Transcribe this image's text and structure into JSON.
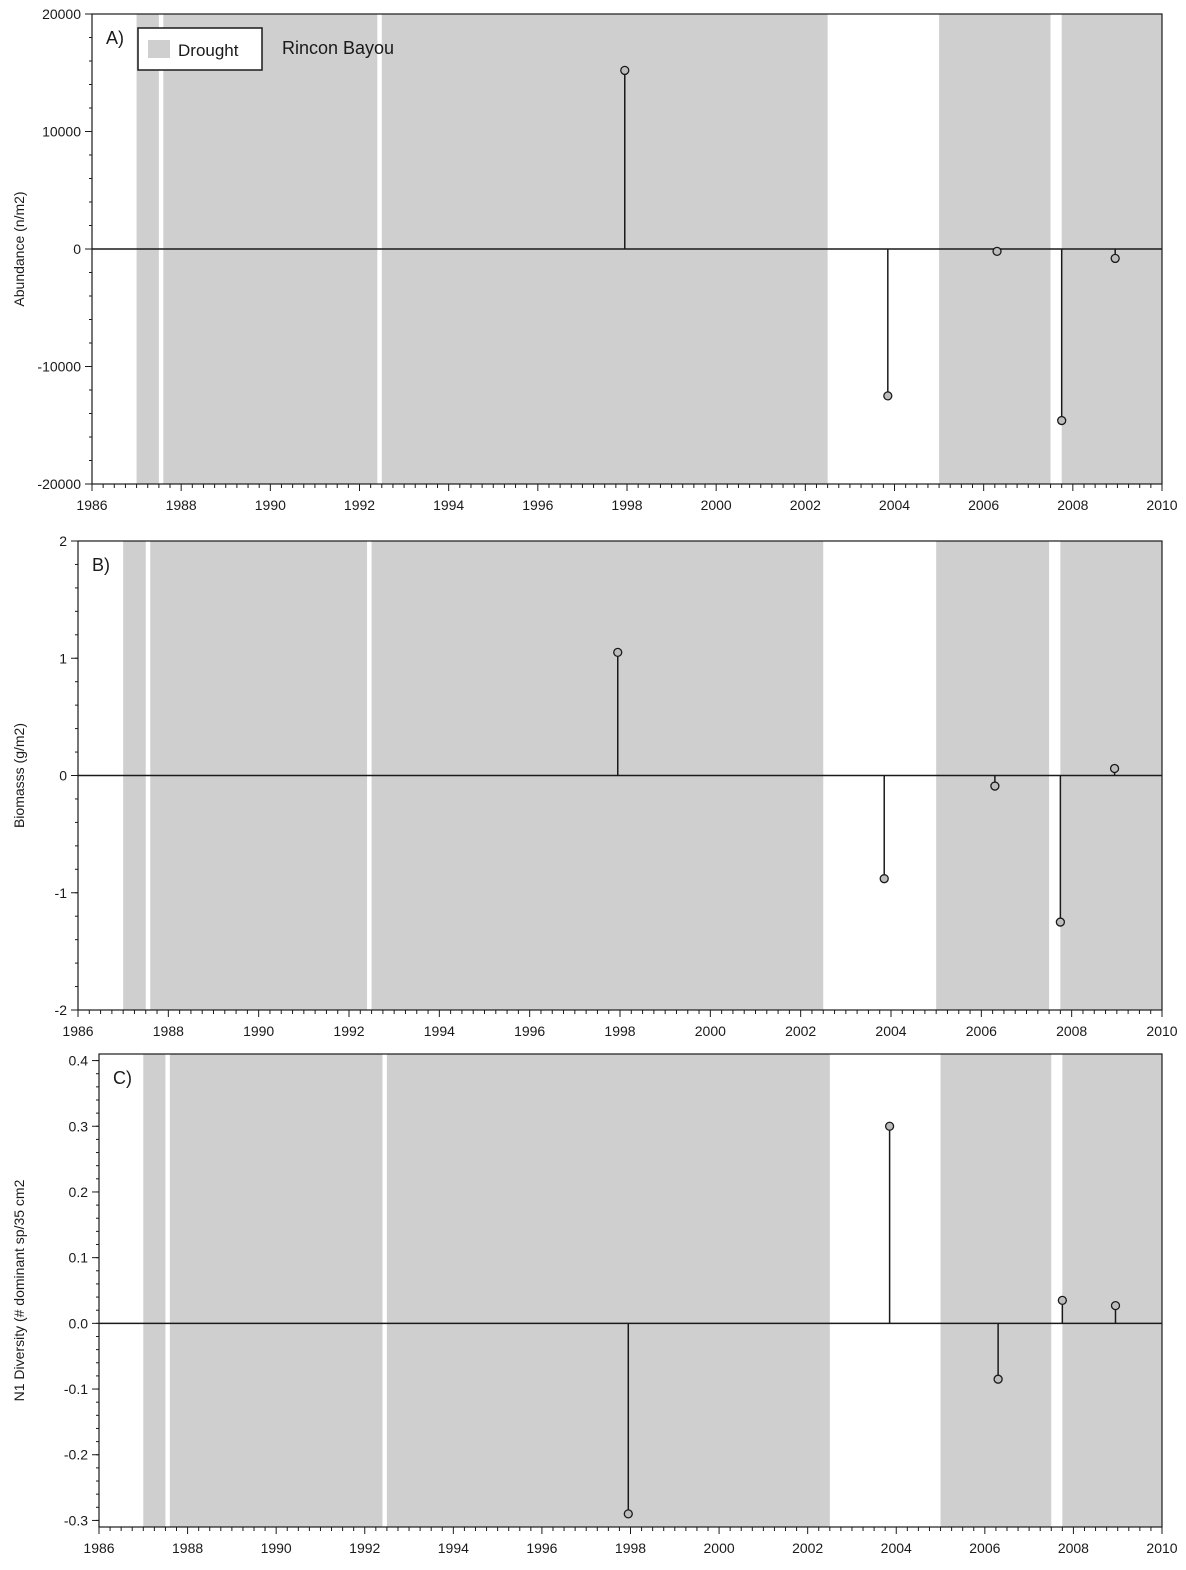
{
  "colors": {
    "drought_fill": "#cfcfcf",
    "background": "#ffffff",
    "line": "#1a1a1a",
    "marker_fill": "#bdbdbd"
  },
  "chart_data": [
    {
      "type": "stem",
      "panel_label": "A)",
      "legend": {
        "swatch_label": "Drought",
        "placement": "top-left"
      },
      "series_label": "Rincon Bayou",
      "ylabel": "Abundance (n/m2)",
      "xlabel": "",
      "xlim": [
        1986,
        2010
      ],
      "ylim": [
        -20000,
        20000
      ],
      "xticks": [
        1986,
        1988,
        1990,
        1992,
        1994,
        1996,
        1998,
        2000,
        2002,
        2004,
        2006,
        2008,
        2010
      ],
      "yticks": [
        -20000,
        -10000,
        0,
        10000,
        20000
      ],
      "ytick_labels": [
        "-20000",
        "-10000",
        "0",
        "10000",
        "20000"
      ],
      "drought_periods": [
        [
          1987.0,
          1987.5
        ],
        [
          1987.6,
          1992.4
        ],
        [
          1992.5,
          2002.5
        ],
        [
          2005.0,
          2007.5
        ],
        [
          2007.75,
          2010.0
        ]
      ],
      "points": [
        {
          "x": 1997.95,
          "y": 15200
        },
        {
          "x": 2003.85,
          "y": -12500
        },
        {
          "x": 2006.3,
          "y": -200
        },
        {
          "x": 2007.75,
          "y": -14600
        },
        {
          "x": 2008.95,
          "y": -800
        }
      ],
      "grid": false
    },
    {
      "type": "stem",
      "panel_label": "B)",
      "ylabel": "Biomasss (g/m2)",
      "xlabel": "",
      "xlim": [
        1986,
        2010
      ],
      "ylim": [
        -2,
        2
      ],
      "xticks": [
        1986,
        1988,
        1990,
        1992,
        1994,
        1996,
        1998,
        2000,
        2002,
        2004,
        2006,
        2008,
        2010
      ],
      "yticks": [
        -2,
        -1,
        0,
        1,
        2
      ],
      "ytick_labels": [
        "-2",
        "-1",
        "0",
        "1",
        "2"
      ],
      "drought_periods": [
        [
          1987.0,
          1987.5
        ],
        [
          1987.6,
          1992.4
        ],
        [
          1992.5,
          2002.5
        ],
        [
          2005.0,
          2007.5
        ],
        [
          2007.75,
          2010.0
        ]
      ],
      "points": [
        {
          "x": 1997.95,
          "y": 1.05
        },
        {
          "x": 2003.85,
          "y": -0.88
        },
        {
          "x": 2006.3,
          "y": -0.09
        },
        {
          "x": 2007.75,
          "y": -1.25
        },
        {
          "x": 2008.95,
          "y": 0.06
        }
      ],
      "grid": false
    },
    {
      "type": "stem",
      "panel_label": "C)",
      "ylabel": "N1 Diversity (# dominant sp/35 cm2",
      "xlabel": "",
      "xlim": [
        1986,
        2010
      ],
      "ylim": [
        -0.31,
        0.41
      ],
      "xticks": [
        1986,
        1988,
        1990,
        1992,
        1994,
        1996,
        1998,
        2000,
        2002,
        2004,
        2006,
        2008,
        2010
      ],
      "yticks": [
        -0.3,
        -0.2,
        -0.1,
        0.0,
        0.1,
        0.2,
        0.3,
        0.4
      ],
      "ytick_labels": [
        "-0.3",
        "-0.2",
        "-0.1",
        "0.0",
        "0.1",
        "0.2",
        "0.3",
        "0.4"
      ],
      "drought_periods": [
        [
          1987.0,
          1987.5
        ],
        [
          1987.6,
          1992.4
        ],
        [
          1992.5,
          2002.5
        ],
        [
          2005.0,
          2007.5
        ],
        [
          2007.75,
          2010.0
        ]
      ],
      "points": [
        {
          "x": 1997.95,
          "y": -0.29
        },
        {
          "x": 2003.85,
          "y": 0.3
        },
        {
          "x": 2006.3,
          "y": -0.085
        },
        {
          "x": 2007.75,
          "y": 0.035
        },
        {
          "x": 2008.95,
          "y": 0.027
        }
      ],
      "grid": false
    }
  ]
}
